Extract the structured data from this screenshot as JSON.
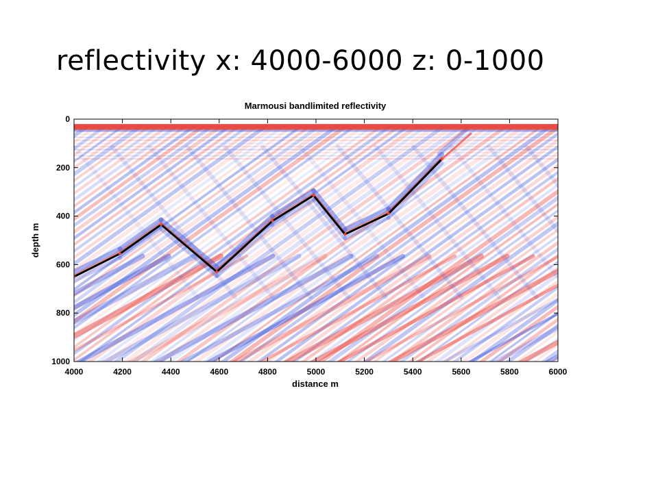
{
  "slide": {
    "title": "reflectivity x: 4000-6000 z: 0-1000"
  },
  "colors": {
    "positive": "#e8413a",
    "negative": "#3a4fd8",
    "background": "#ffffff",
    "interpretation": "#000000"
  },
  "chart_data": {
    "type": "heatmap",
    "title": "Marmousi bandlimited reflectivity",
    "xlabel": "distance m",
    "ylabel": "depth m",
    "xlim": [
      4000,
      6000
    ],
    "ylim": [
      0,
      1000
    ],
    "y_inverted": true,
    "colormap": "blue-white-red",
    "xticks": [
      4000,
      4200,
      4400,
      4600,
      4800,
      5000,
      5200,
      5400,
      5600,
      5800,
      6000
    ],
    "yticks": [
      0,
      200,
      400,
      600,
      800,
      1000
    ],
    "horizon": {
      "x": [
        4000,
        4190,
        4360,
        4590,
        4820,
        4990,
        5120,
        5300,
        5520
      ],
      "z": [
        650,
        555,
        435,
        630,
        420,
        315,
        475,
        390,
        165
      ]
    }
  }
}
